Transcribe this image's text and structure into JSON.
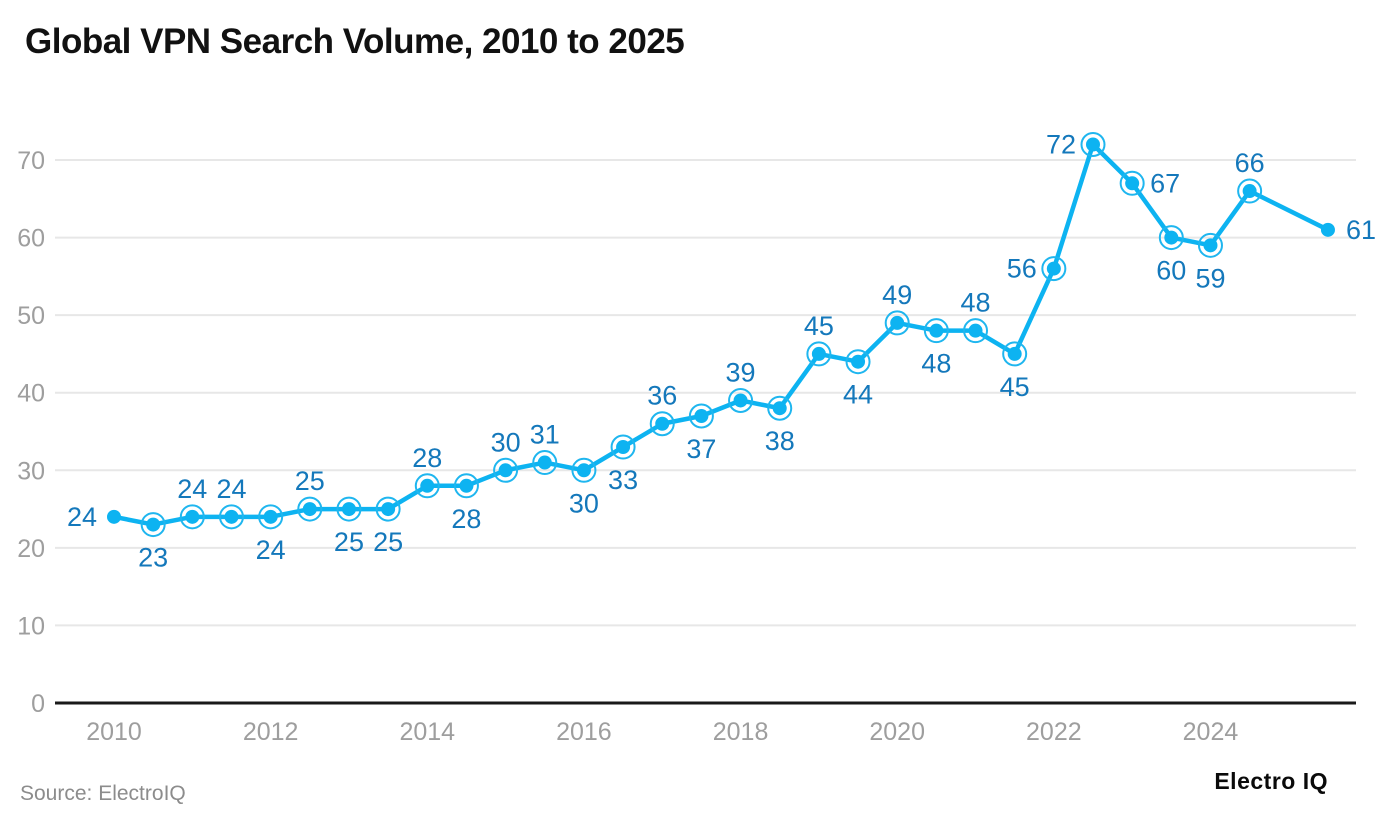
{
  "page": {
    "title": "Global VPN Search Volume, 2010 to 2025",
    "source": "Source: ElectroIQ",
    "brand": "Electro IQ"
  },
  "colors": {
    "line": "#0db3f1",
    "marker": "#0db3f1",
    "marker_ring": "#1fb6ef",
    "value_label": "#1478bb",
    "axis_text": "#9e9e9e",
    "gridline": "#e7e7e7",
    "zero_line": "#1a1a1a",
    "title_text": "#111111",
    "source_text": "#8c8c8c",
    "background": "#ffffff"
  },
  "chart_data": {
    "type": "line",
    "title": "Global VPN Search Volume, 2010 to 2025",
    "x": [
      2010,
      2010.5,
      2011,
      2011.5,
      2012,
      2012.5,
      2013,
      2013.5,
      2014,
      2014.5,
      2015,
      2015.5,
      2016,
      2016.5,
      2017,
      2017.5,
      2018,
      2018.5,
      2019,
      2019.5,
      2020,
      2020.5,
      2021,
      2021.5,
      2022,
      2022.5,
      2023,
      2023.5,
      2024,
      2024.5,
      2025.5
    ],
    "values": [
      24,
      23,
      24,
      24,
      24,
      25,
      25,
      25,
      28,
      28,
      30,
      31,
      30,
      33,
      36,
      37,
      39,
      38,
      45,
      44,
      49,
      48,
      48,
      45,
      56,
      72,
      67,
      60,
      59,
      66,
      61
    ],
    "label_sides": [
      "left",
      "below",
      "above",
      "above",
      "below",
      "above",
      "below",
      "below",
      "above",
      "below",
      "above",
      "above",
      "below",
      "below",
      "above",
      "below",
      "above",
      "below",
      "above",
      "below",
      "above",
      "below",
      "above",
      "below",
      "left",
      "left",
      "right",
      "below",
      "below",
      "above",
      "right"
    ],
    "x_tick_labels": [
      "2010",
      "2012",
      "2014",
      "2016",
      "2018",
      "2020",
      "2022",
      "2024"
    ],
    "x_tick_years": [
      2010,
      2012,
      2014,
      2016,
      2018,
      2020,
      2022,
      2024
    ],
    "y_ticks": [
      0,
      10,
      20,
      30,
      40,
      50,
      60,
      70
    ],
    "ylim": [
      0,
      75
    ],
    "grid": "horizontal-only",
    "legend": "none",
    "marker_style": "filled dot with thin ring; first and last points plain dot",
    "value_labels_shown": true
  }
}
